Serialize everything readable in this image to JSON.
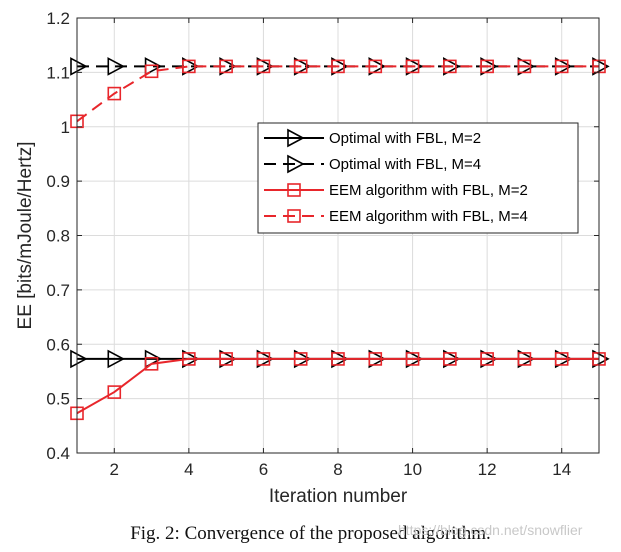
{
  "caption": "Fig. 2: Convergence of the proposed algorithm.",
  "watermark": "https://blog.csdn.net/snowflier",
  "chart_data": {
    "type": "line",
    "xlabel": "Iteration number",
    "ylabel": "EE [bits/mJoule/Hertz]",
    "xlim": [
      1,
      15
    ],
    "ylim": [
      0.4,
      1.2
    ],
    "xticks": [
      2,
      4,
      6,
      8,
      10,
      12,
      14
    ],
    "yticks": [
      0.4,
      0.5,
      0.6,
      0.7,
      0.8,
      0.9,
      1,
      1.1,
      1.2
    ],
    "ytick_labels": [
      "0.4",
      "0.5",
      "0.6",
      "0.7",
      "0.8",
      "0.9",
      "1",
      "1.1",
      "1.2"
    ],
    "grid": true,
    "legend_position": "right",
    "x": [
      1,
      2,
      3,
      4,
      5,
      6,
      7,
      8,
      9,
      10,
      11,
      12,
      13,
      14,
      15
    ],
    "series": [
      {
        "name": "Optimal with FBL, M=2",
        "color": "#000000",
        "line": "solid",
        "marker": "triangle-right",
        "values": [
          0.573,
          0.573,
          0.573,
          0.573,
          0.573,
          0.573,
          0.573,
          0.573,
          0.573,
          0.573,
          0.573,
          0.573,
          0.573,
          0.573,
          0.573
        ]
      },
      {
        "name": "Optimal with FBL, M=4",
        "color": "#000000",
        "line": "dashed",
        "marker": "triangle-right",
        "values": [
          1.111,
          1.111,
          1.111,
          1.111,
          1.111,
          1.111,
          1.111,
          1.111,
          1.111,
          1.111,
          1.111,
          1.111,
          1.111,
          1.111,
          1.111
        ]
      },
      {
        "name": "EEM algorithm with FBL, M=2",
        "color": "#e8262b",
        "line": "solid",
        "marker": "square",
        "values": [
          0.473,
          0.512,
          0.564,
          0.573,
          0.573,
          0.573,
          0.573,
          0.573,
          0.573,
          0.573,
          0.573,
          0.573,
          0.573,
          0.573,
          0.573
        ]
      },
      {
        "name": "EEM algorithm with FBL, M=4",
        "color": "#e8262b",
        "line": "dashed",
        "marker": "square",
        "values": [
          1.01,
          1.061,
          1.102,
          1.111,
          1.111,
          1.111,
          1.111,
          1.111,
          1.111,
          1.111,
          1.111,
          1.111,
          1.111,
          1.111,
          1.111
        ]
      }
    ]
  }
}
